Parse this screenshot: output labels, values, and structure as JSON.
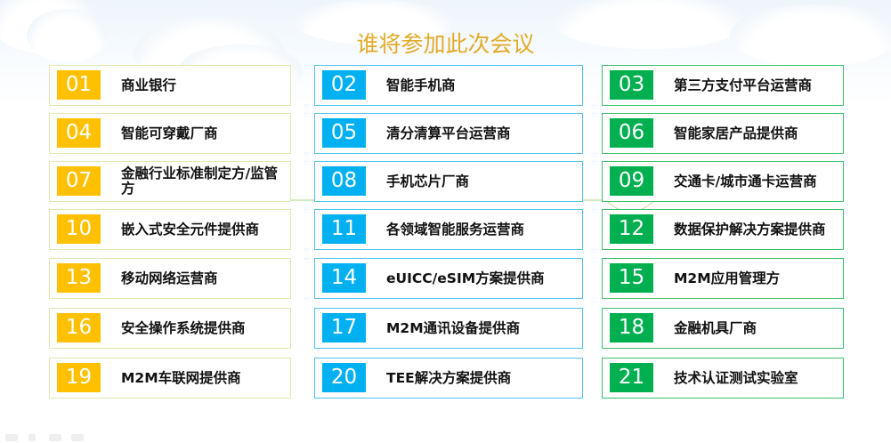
{
  "title": "谁将参加此次会议",
  "colors": {
    "col1": "#FFC000",
    "col2": "#00B0F0",
    "col3": "#00B050",
    "title": "#E2AB2A"
  },
  "items": [
    {
      "num": "01",
      "label": "商业银行"
    },
    {
      "num": "02",
      "label": "智能手机商"
    },
    {
      "num": "03",
      "label": "第三方支付平台运营商"
    },
    {
      "num": "04",
      "label": "智能可穿戴厂商"
    },
    {
      "num": "05",
      "label": "清分清算平台运营商"
    },
    {
      "num": "06",
      "label": "智能家居产品提供商"
    },
    {
      "num": "07",
      "label": "金融行业标准制定方/监管方"
    },
    {
      "num": "08",
      "label": "手机芯片厂商"
    },
    {
      "num": "09",
      "label": "交通卡/城市通卡运营商"
    },
    {
      "num": "10",
      "label": "嵌入式安全元件提供商"
    },
    {
      "num": "11",
      "label": "各领域智能服务运营商"
    },
    {
      "num": "12",
      "label": "数据保护解决方案提供商"
    },
    {
      "num": "13",
      "label": "移动网络运营商"
    },
    {
      "num": "14",
      "label": "eUICC/eSIM方案提供商"
    },
    {
      "num": "15",
      "label": "M2M应用管理方"
    },
    {
      "num": "16",
      "label": "安全操作系统提供商"
    },
    {
      "num": "17",
      "label": "M2M通讯设备提供商"
    },
    {
      "num": "18",
      "label": "金融机具厂商"
    },
    {
      "num": "19",
      "label": "M2M车联网提供商"
    },
    {
      "num": "20",
      "label": "TEE解决方案提供商"
    },
    {
      "num": "21",
      "label": "技术认证测试实验室"
    }
  ],
  "nav_icons": [
    "arrow-left-icon",
    "pen-icon",
    "menu-icon",
    "arrow-right-icon"
  ]
}
